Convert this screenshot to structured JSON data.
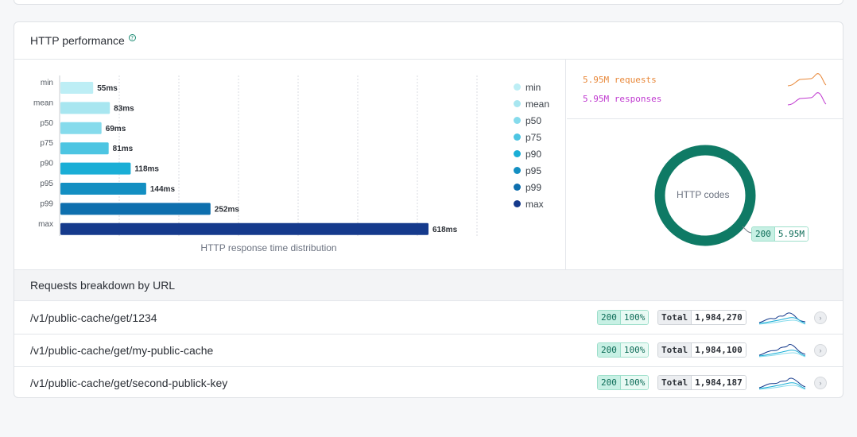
{
  "card": {
    "title": "HTTP performance",
    "help_icon": "question-circle-icon"
  },
  "chart_data": {
    "type": "bar",
    "orientation": "horizontal",
    "title": "HTTP response time distribution",
    "categories": [
      "min",
      "mean",
      "p50",
      "p75",
      "p90",
      "p95",
      "p99",
      "max"
    ],
    "values": [
      55,
      83,
      69,
      81,
      118,
      144,
      252,
      618
    ],
    "value_labels": [
      "55ms",
      "83ms",
      "69ms",
      "81ms",
      "118ms",
      "144ms",
      "252ms",
      "618ms"
    ],
    "unit": "ms",
    "colors": [
      "#bdeef5",
      "#a8e6f0",
      "#86dbec",
      "#4dc5e2",
      "#1aaed6",
      "#138fc2",
      "#0e6fae",
      "#153a8c"
    ],
    "grid": true,
    "legend_position": "right"
  },
  "legend": [
    {
      "label": "min",
      "color": "#bdeef5"
    },
    {
      "label": "mean",
      "color": "#a8e6f0"
    },
    {
      "label": "p50",
      "color": "#86dbec"
    },
    {
      "label": "p75",
      "color": "#4dc5e2"
    },
    {
      "label": "p90",
      "color": "#1aaed6"
    },
    {
      "label": "p95",
      "color": "#138fc2"
    },
    {
      "label": "p99",
      "color": "#0e6fae"
    },
    {
      "label": "max",
      "color": "#153a8c"
    }
  ],
  "traffic": {
    "requests": "5.95M requests",
    "responses": "5.95M responses",
    "requests_color": "#e8883a",
    "responses_color": "#c03ad0"
  },
  "http_codes": {
    "label": "HTTP codes",
    "ring_color": "#0f7a65",
    "code": "200",
    "count": "5.95M"
  },
  "breakdown": {
    "title": "Requests breakdown by URL",
    "rows": [
      {
        "url": "/v1/public-cache/get/1234",
        "code": "200",
        "percent": "100%",
        "total_label": "Total",
        "total": "1,984,270"
      },
      {
        "url": "/v1/public-cache/get/my-public-cache",
        "code": "200",
        "percent": "100%",
        "total_label": "Total",
        "total": "1,984,100"
      },
      {
        "url": "/v1/public-cache/get/second-publick-key",
        "code": "200",
        "percent": "100%",
        "total_label": "Total",
        "total": "1,984,187"
      }
    ]
  }
}
